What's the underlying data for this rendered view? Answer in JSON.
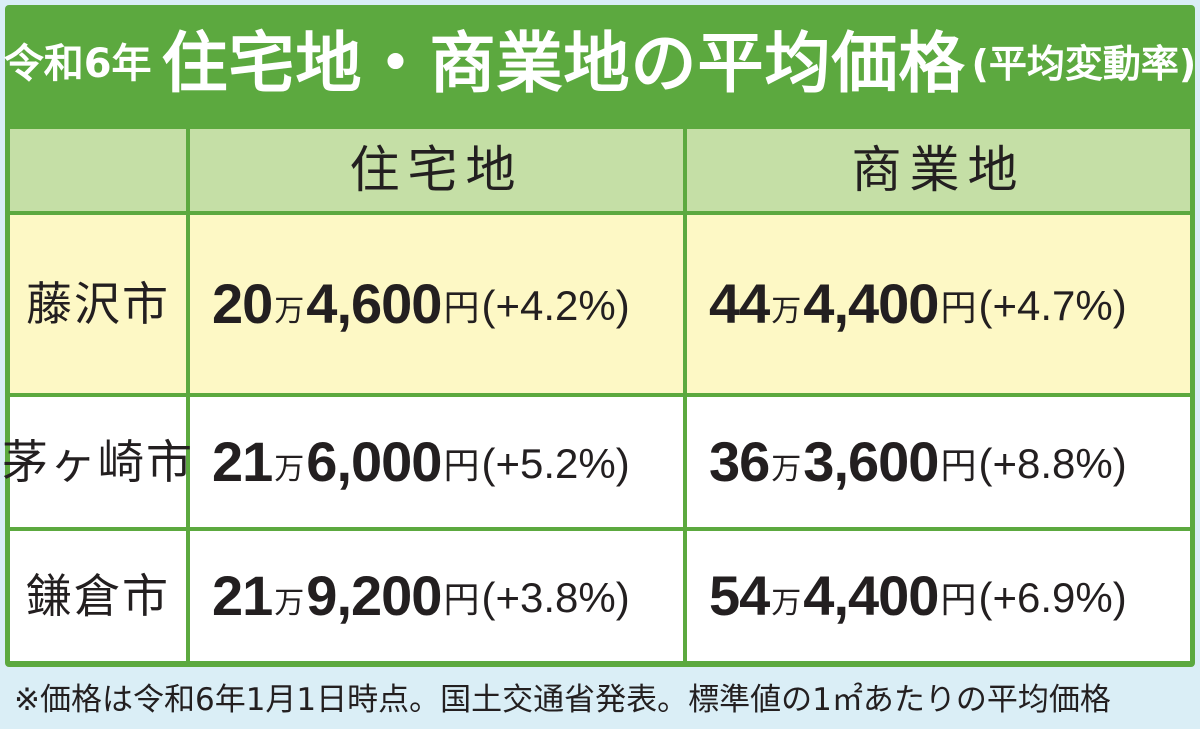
{
  "title": {
    "prefix": "令和6年",
    "main": "住宅地・商業地の平均価格",
    "suffix": "(平均変動率)"
  },
  "table": {
    "headers": [
      "",
      "住宅地",
      "商業地"
    ],
    "rows": [
      {
        "city": "藤沢市",
        "residential": {
          "man": "20",
          "man_unit": "万",
          "rest": "4,600",
          "yen": "円",
          "change": "(+4.2%)"
        },
        "commercial": {
          "man": "44",
          "man_unit": "万",
          "rest": "4,400",
          "yen": "円",
          "change": "(+4.7%)"
        }
      },
      {
        "city": "茅ヶ崎市",
        "residential": {
          "man": "21",
          "man_unit": "万",
          "rest": "6,000",
          "yen": "円",
          "change": "(+5.2%)"
        },
        "commercial": {
          "man": "36",
          "man_unit": "万",
          "rest": "3,600",
          "yen": "円",
          "change": "(+8.8%)"
        }
      },
      {
        "city": "鎌倉市",
        "residential": {
          "man": "21",
          "man_unit": "万",
          "rest": "9,200",
          "yen": "円",
          "change": "(+3.8%)"
        },
        "commercial": {
          "man": "54",
          "man_unit": "万",
          "rest": "4,400",
          "yen": "円",
          "change": "(+6.9%)"
        }
      }
    ]
  },
  "footnote": "※価格は令和6年1月1日時点。国土交通省発表。標準値の1㎡あたりの平均価格",
  "colors": {
    "frame_green": "#5ca93f",
    "header_green": "#c5dfa6",
    "highlight_yellow": "#fdf8c5",
    "background_blue": "#daeef6"
  }
}
